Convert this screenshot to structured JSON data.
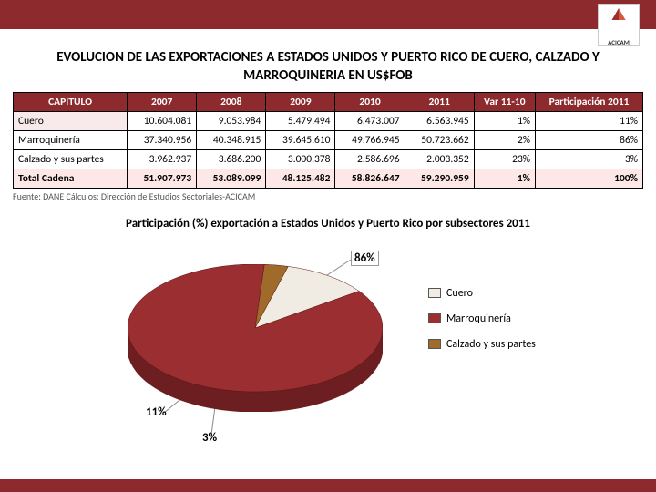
{
  "header": {
    "logo_text": "ACICAM"
  },
  "title": "EVOLUCION DE LAS EXPORTACIONES A ESTADOS UNIDOS Y PUERTO RICO DE CUERO, CALZADO Y MARROQUINERIA EN US$FOB",
  "table": {
    "columns": [
      "CAPITULO",
      "2007",
      "2008",
      "2009",
      "2010",
      "2011",
      "Var 11-10",
      "Participación 2011"
    ],
    "rows": [
      [
        "Cuero",
        "10.604.081",
        "9.053.984",
        "5.479.494",
        "6.473.007",
        "6.563.945",
        "1%",
        "11%"
      ],
      [
        "Marroquinería",
        "37.340.956",
        "40.348.915",
        "39.645.610",
        "49.766.945",
        "50.723.662",
        "2%",
        "86%"
      ],
      [
        "Calzado y sus partes",
        "3.962.937",
        "3.686.200",
        "3.000.378",
        "2.586.696",
        "2.003.352",
        "-23%",
        "3%"
      ],
      [
        "Total Cadena",
        "51.907.973",
        "53.089.099",
        "48.125.482",
        "58.826.647",
        "59.290.959",
        "1%",
        "100%"
      ]
    ]
  },
  "source": "Fuente: DANE Cálculos: Dirección de Estudios Sectoriales-ACICAM",
  "chart": {
    "title": "Participación (%) exportación a Estados Unidos y Puerto Rico por subsectores 2011",
    "type": "pie",
    "slices": [
      {
        "name": "Cuero",
        "value": 11,
        "label": "11%",
        "color_top": "#f1ece3",
        "color_side": "#c9c2b2"
      },
      {
        "name": "Marroquinería",
        "value": 86,
        "label": "86%",
        "color_top": "#9b2e30",
        "color_side": "#6d1e20"
      },
      {
        "name": "Calzado y sus partes",
        "value": 3,
        "label": "3%",
        "color_top": "#a06a2a",
        "color_side": "#6e4819"
      }
    ],
    "legend_labels": [
      "Cuero",
      "Marroquinería",
      "Calzado y sus partes"
    ],
    "legend_colors": [
      "#f1ece3",
      "#9b2e30",
      "#a06a2a"
    ],
    "background_color": "#ffffff"
  }
}
